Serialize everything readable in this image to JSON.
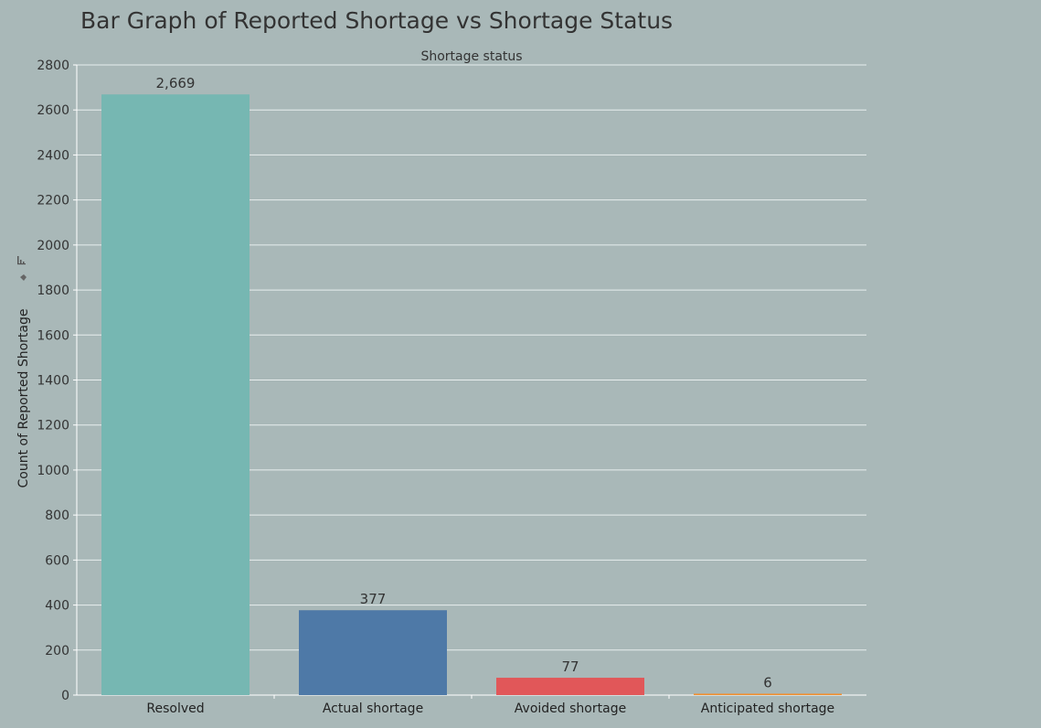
{
  "chart_data": {
    "type": "bar",
    "title": "Bar Graph of Reported Shortage vs Shortage Status",
    "column_header": "Shortage status",
    "xlabel": "",
    "ylabel": "Count of Reported Shortage",
    "ylim": [
      0,
      2800
    ],
    "yticks": [
      0,
      200,
      400,
      600,
      800,
      1000,
      1200,
      1400,
      1600,
      1800,
      2000,
      2200,
      2400,
      2600,
      2800
    ],
    "grid": true,
    "categories": [
      "Resolved",
      "Actual shortage",
      "Avoided shortage",
      "Anticipated shortage"
    ],
    "values": [
      2669,
      377,
      77,
      6
    ],
    "data_labels": [
      "2,669",
      "377",
      "77",
      "6"
    ],
    "colors": [
      "#76b7b2",
      "#4e79a7",
      "#e15759",
      "#f28e2b"
    ]
  },
  "toolbar": {
    "icons": [
      "sort-icon",
      "pin-icon"
    ]
  }
}
